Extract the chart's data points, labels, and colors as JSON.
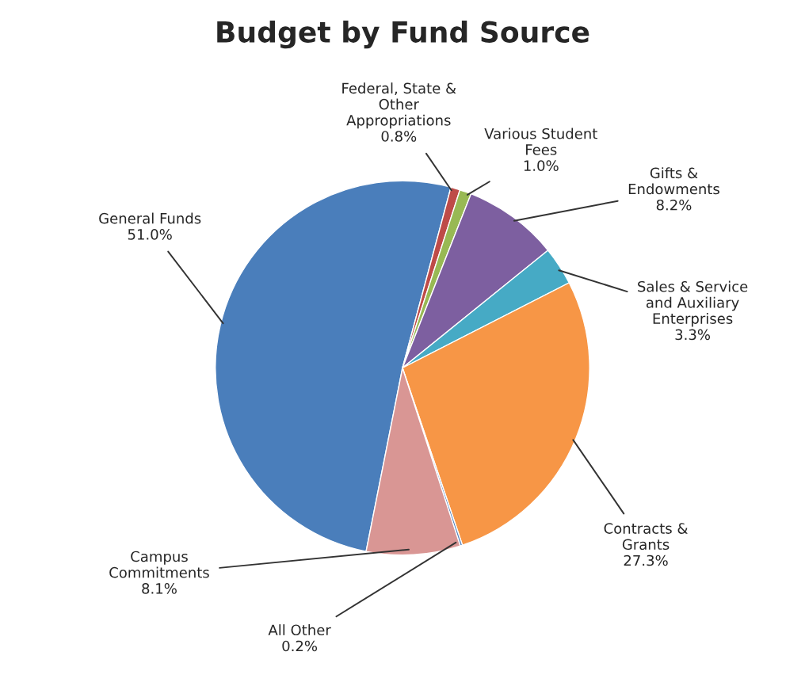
{
  "chart_data": {
    "type": "pie",
    "title": "Budget by Fund Source",
    "categories": [
      "General Funds",
      "Federal, State &\nOther\nAppropriations",
      "Various Student\nFees",
      "Gifts &\nEndowments",
      "Sales & Service\nand Auxiliary\nEnterprises",
      "Contracts &\nGrants",
      "All Other",
      "Campus\nCommitments"
    ],
    "values": [
      51.0,
      0.8,
      1.0,
      8.2,
      3.3,
      27.3,
      0.2,
      8.1
    ],
    "value_labels": [
      "51.0%",
      "0.8%",
      "1.0%",
      "8.2%",
      "3.3%",
      "27.3%",
      "0.2%",
      "8.1%"
    ],
    "colors": [
      "#4a7ebb",
      "#be4b48",
      "#98b954",
      "#7d5fa0",
      "#46aac5",
      "#f79646",
      "#5b87c0",
      "#d99694"
    ],
    "legend": false
  }
}
